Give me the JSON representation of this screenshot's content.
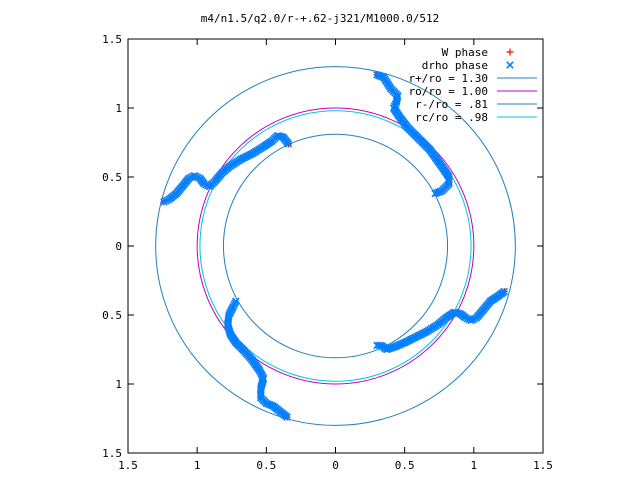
{
  "chart_data": {
    "type": "scatter",
    "title": "m4/n1.5/q2.0/r-+.62-j321/M1000.0/512",
    "xlim": [
      -1.5,
      1.5
    ],
    "ylim": [
      -1.5,
      1.5
    ],
    "x_tick_labels": [
      "1.5",
      "1",
      "0.5",
      "0",
      "0.5",
      "1",
      "1.5"
    ],
    "y_tick_labels": [
      "1.5",
      "1",
      "0.5",
      "0",
      "0.5",
      "1",
      "1.5"
    ],
    "tick_values": [
      -1.5,
      -1,
      -0.5,
      0,
      0.5,
      1,
      1.5
    ],
    "grid": false,
    "legend_position": "top-right",
    "series": [
      {
        "name": "W phase",
        "marker": "+",
        "color": "#ff0000"
      },
      {
        "name": "drho phase",
        "marker": "x",
        "color": "#0080ff"
      },
      {
        "name": "r+/ro = 1.30",
        "kind": "circle",
        "r": 1.3,
        "color": "#2080c0"
      },
      {
        "name": "ro/ro = 1.00",
        "kind": "circle",
        "r": 1.0,
        "color": "#c000c0"
      },
      {
        "name": "r-/ro = .81",
        "kind": "circle",
        "r": 0.81,
        "color": "#2080c0"
      },
      {
        "name": "rc/ro = .98",
        "kind": "circle",
        "r": 0.98,
        "color": "#00c8d8"
      }
    ],
    "phase_arms": [
      [
        [
          0.3,
          1.24
        ],
        [
          0.35,
          1.22
        ],
        [
          0.4,
          1.14
        ],
        [
          0.45,
          1.09
        ],
        [
          0.44,
          1.04
        ],
        [
          0.42,
          1.0
        ],
        [
          0.46,
          0.94
        ],
        [
          0.52,
          0.86
        ],
        [
          0.6,
          0.78
        ],
        [
          0.68,
          0.7
        ],
        [
          0.73,
          0.63
        ],
        [
          0.78,
          0.56
        ],
        [
          0.82,
          0.5
        ],
        [
          0.82,
          0.45
        ],
        [
          0.77,
          0.4
        ],
        [
          0.72,
          0.38
        ]
      ],
      [
        [
          1.22,
          -0.33
        ],
        [
          1.18,
          -0.36
        ],
        [
          1.12,
          -0.4
        ],
        [
          1.07,
          -0.46
        ],
        [
          1.02,
          -0.52
        ],
        [
          0.98,
          -0.54
        ],
        [
          0.94,
          -0.52
        ],
        [
          0.9,
          -0.49
        ],
        [
          0.86,
          -0.48
        ],
        [
          0.8,
          -0.52
        ],
        [
          0.74,
          -0.57
        ],
        [
          0.66,
          -0.62
        ],
        [
          0.58,
          -0.66
        ],
        [
          0.5,
          -0.7
        ],
        [
          0.43,
          -0.73
        ],
        [
          0.37,
          -0.75
        ],
        [
          0.33,
          -0.72
        ],
        [
          0.3,
          -0.72
        ]
      ],
      [
        [
          -0.35,
          -1.24
        ],
        [
          -0.4,
          -1.2
        ],
        [
          -0.45,
          -1.16
        ],
        [
          -0.5,
          -1.14
        ],
        [
          -0.54,
          -1.1
        ],
        [
          -0.54,
          -1.03
        ],
        [
          -0.52,
          -0.96
        ],
        [
          -0.55,
          -0.9
        ],
        [
          -0.6,
          -0.83
        ],
        [
          -0.66,
          -0.76
        ],
        [
          -0.72,
          -0.7
        ],
        [
          -0.76,
          -0.64
        ],
        [
          -0.78,
          -0.57
        ],
        [
          -0.77,
          -0.5
        ],
        [
          -0.74,
          -0.44
        ],
        [
          -0.72,
          -0.4
        ]
      ],
      [
        [
          -1.24,
          0.32
        ],
        [
          -1.2,
          0.34
        ],
        [
          -1.15,
          0.38
        ],
        [
          -1.1,
          0.44
        ],
        [
          -1.06,
          0.49
        ],
        [
          -1.02,
          0.51
        ],
        [
          -0.98,
          0.49
        ],
        [
          -0.95,
          0.45
        ],
        [
          -0.91,
          0.43
        ],
        [
          -0.87,
          0.47
        ],
        [
          -0.82,
          0.53
        ],
        [
          -0.76,
          0.58
        ],
        [
          -0.68,
          0.63
        ],
        [
          -0.6,
          0.67
        ],
        [
          -0.52,
          0.72
        ],
        [
          -0.46,
          0.76
        ],
        [
          -0.42,
          0.8
        ],
        [
          -0.38,
          0.79
        ],
        [
          -0.34,
          0.74
        ]
      ]
    ]
  }
}
